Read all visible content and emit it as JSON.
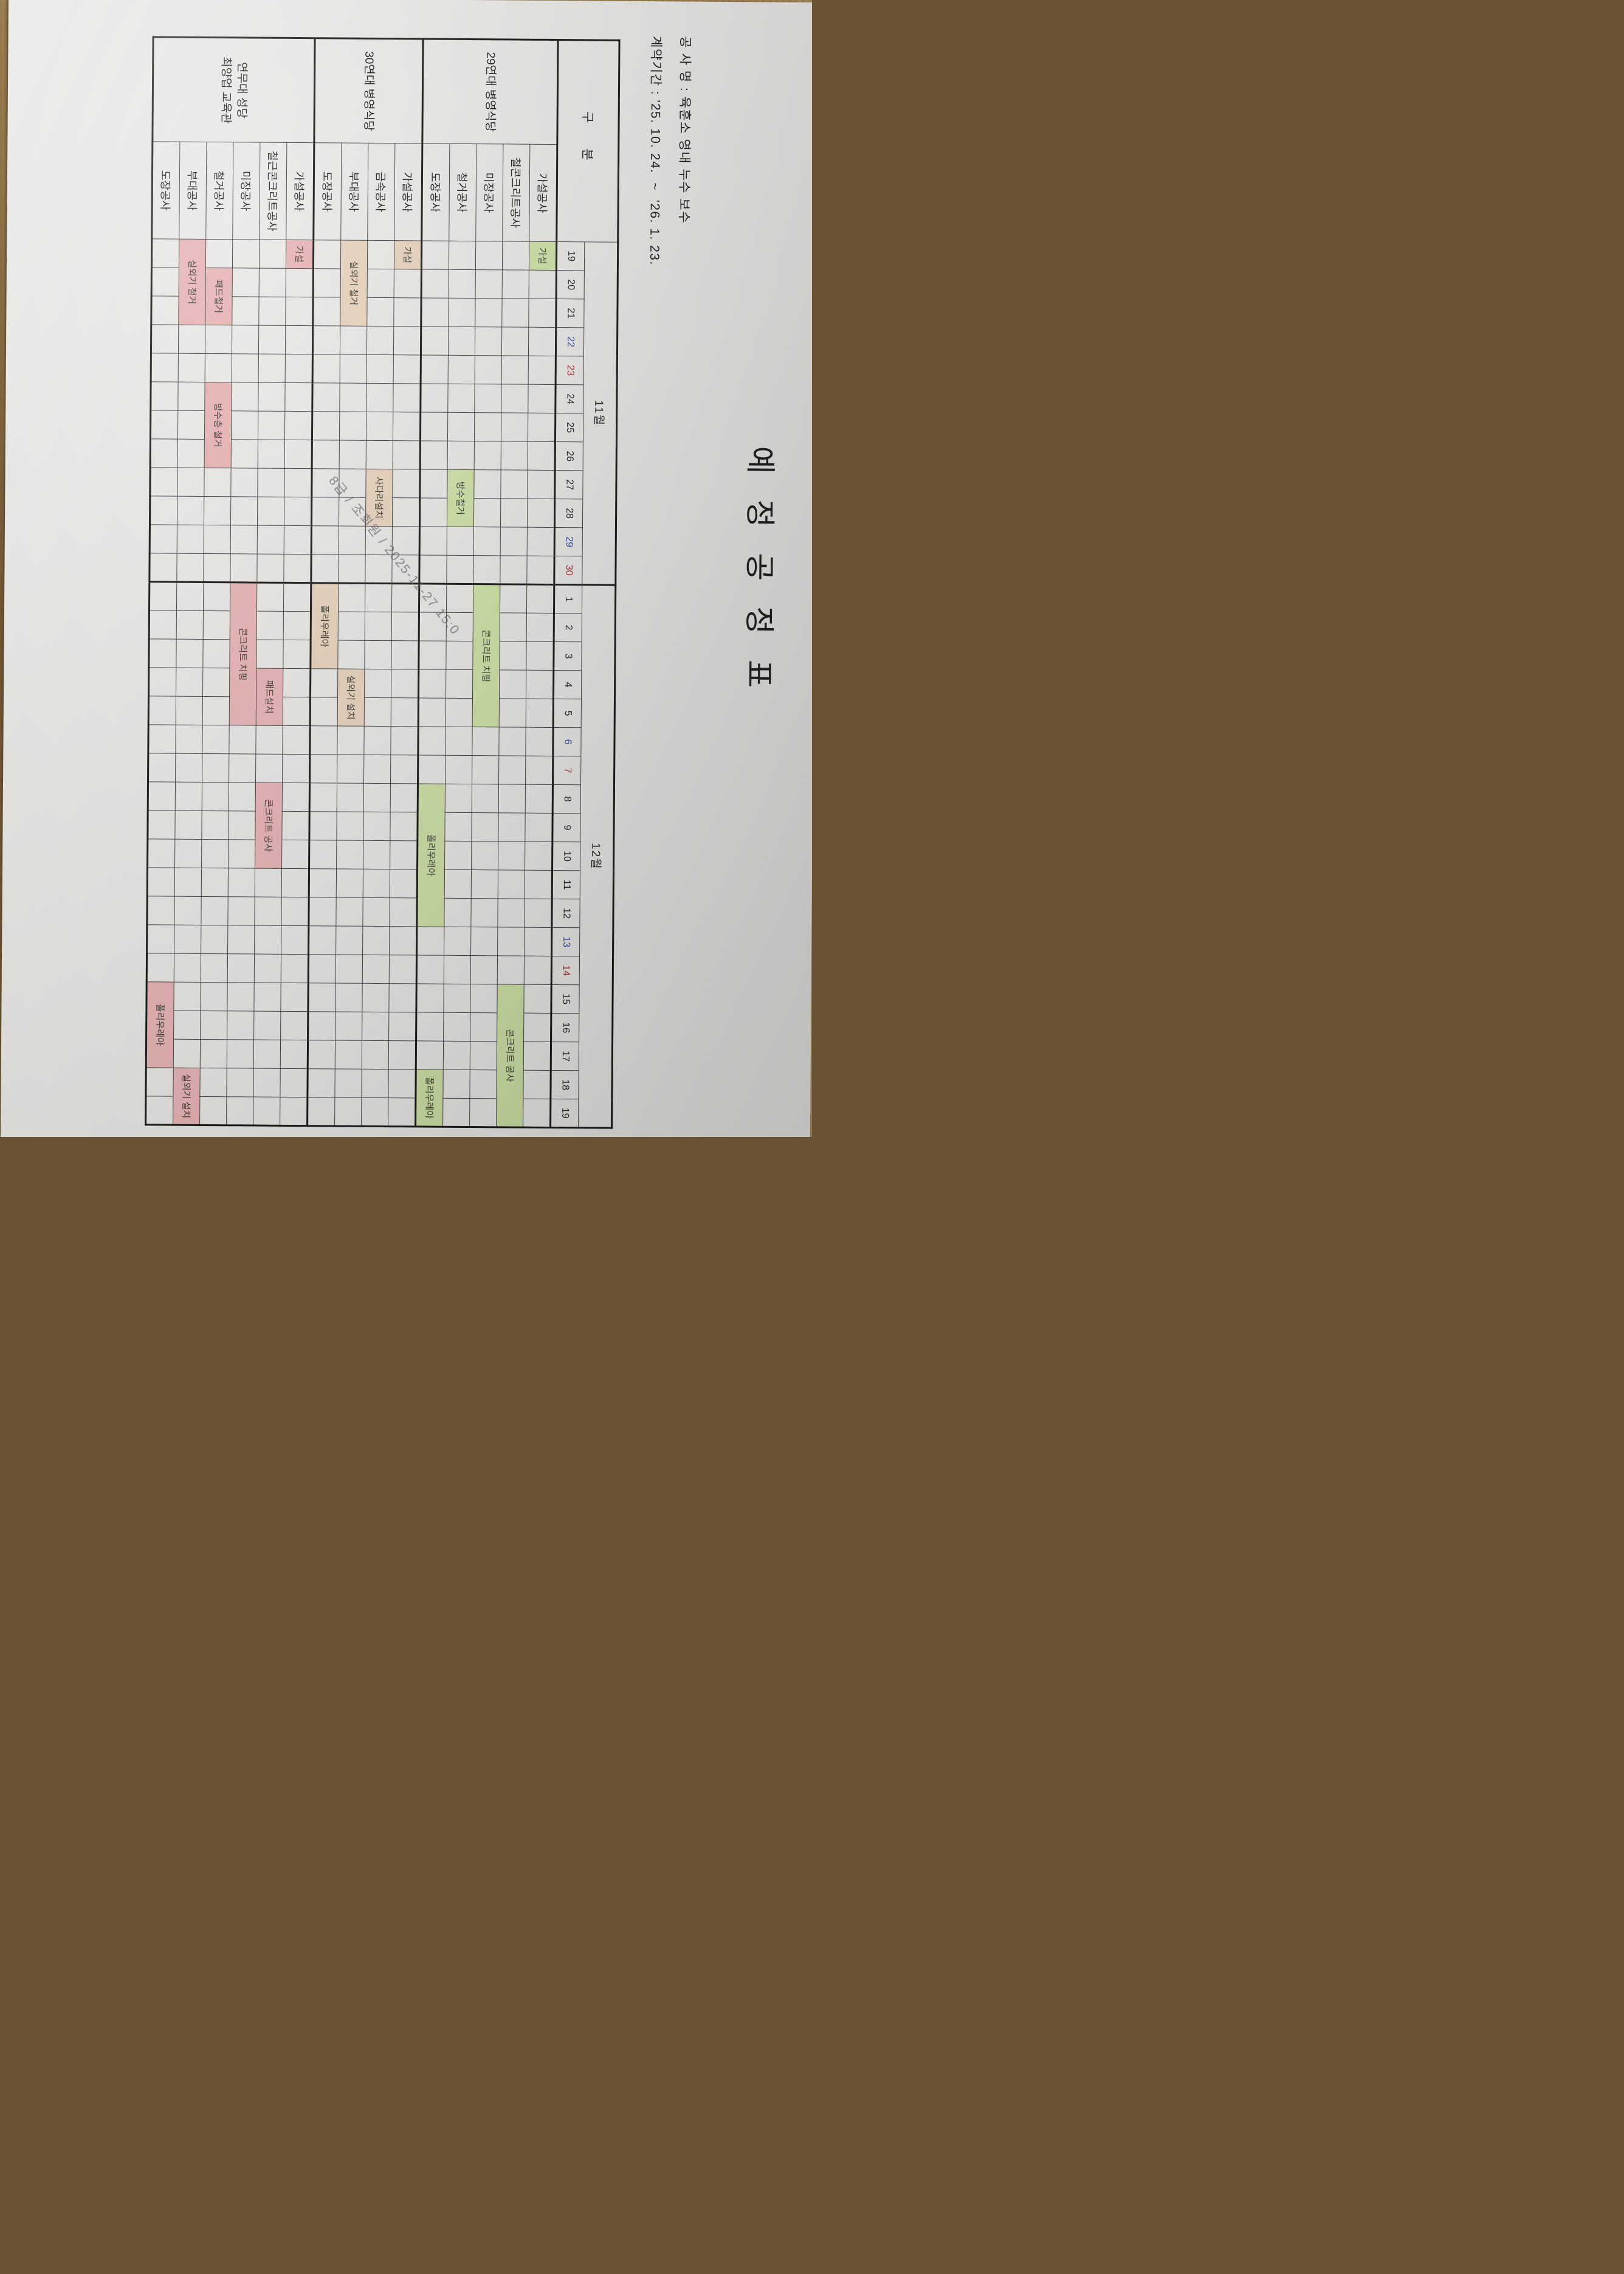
{
  "photo": {
    "watermark_text": "8급 / 조회원 / 2025-11-27 15:0",
    "wood_color": "#8d6f47",
    "paper_color": "#eae8e5"
  },
  "document": {
    "title": "예 정 공 정 표",
    "project_line": "공 사 명 : 육훈소 영내 누수 보수",
    "contract_line": "계약기간 : '25. 10. 24.  ~  '26. 1. 23.",
    "table": {
      "corner_label": "구 분",
      "day_colors": {
        "n": "#222222",
        "blue": "#2f4f9e",
        "red": "#a83232"
      },
      "months": [
        {
          "label": "11월",
          "count": 12
        },
        {
          "label": "12월",
          "count": 19
        }
      ],
      "days": [
        {
          "label": "19",
          "c": "n"
        },
        {
          "label": "20",
          "c": "n"
        },
        {
          "label": "21",
          "c": "n"
        },
        {
          "label": "22",
          "c": "blue"
        },
        {
          "label": "23",
          "c": "red"
        },
        {
          "label": "24",
          "c": "n"
        },
        {
          "label": "25",
          "c": "n"
        },
        {
          "label": "26",
          "c": "n"
        },
        {
          "label": "27",
          "c": "n"
        },
        {
          "label": "28",
          "c": "n"
        },
        {
          "label": "29",
          "c": "blue"
        },
        {
          "label": "30",
          "c": "red"
        },
        {
          "label": "1",
          "c": "n"
        },
        {
          "label": "2",
          "c": "n"
        },
        {
          "label": "3",
          "c": "n"
        },
        {
          "label": "4",
          "c": "n"
        },
        {
          "label": "5",
          "c": "n"
        },
        {
          "label": "6",
          "c": "blue"
        },
        {
          "label": "7",
          "c": "red"
        },
        {
          "label": "8",
          "c": "n"
        },
        {
          "label": "9",
          "c": "n"
        },
        {
          "label": "10",
          "c": "n"
        },
        {
          "label": "11",
          "c": "n"
        },
        {
          "label": "12",
          "c": "n"
        },
        {
          "label": "13",
          "c": "blue"
        },
        {
          "label": "14",
          "c": "red"
        },
        {
          "label": "15",
          "c": "n"
        },
        {
          "label": "16",
          "c": "n"
        },
        {
          "label": "17",
          "c": "n"
        },
        {
          "label": "18",
          "c": "n"
        },
        {
          "label": "19",
          "c": "n"
        }
      ],
      "groups": [
        {
          "name_lines": [
            "29연대 병영식당"
          ],
          "bar_color": "#cde1a5",
          "rows": [
            {
              "label": "가설공사",
              "bars": [
                {
                  "col": 0,
                  "span": 1,
                  "text": "가설"
                }
              ]
            },
            {
              "label": "철콘크리트공사",
              "bars": [
                {
                  "col": 26,
                  "span": 5,
                  "text": "콘크리트 공사"
                }
              ]
            },
            {
              "label": "미장공사",
              "bars": [
                {
                  "col": 12,
                  "span": 5,
                  "text": "콘크리트 치핑"
                }
              ]
            },
            {
              "label": "철거공사",
              "bars": [
                {
                  "col": 8,
                  "span": 2,
                  "text": "방수철거"
                }
              ]
            },
            {
              "label": "도장공사",
              "bars": [
                {
                  "col": 19,
                  "span": 5,
                  "text": "폴리우레아"
                },
                {
                  "col": 29,
                  "span": 2,
                  "text": "폴리우레아"
                }
              ]
            }
          ]
        },
        {
          "name_lines": [
            "30연대 병영식당"
          ],
          "bar_color": "#e7d2bd",
          "rows": [
            {
              "label": "가설공사",
              "bars": [
                {
                  "col": 0,
                  "span": 1,
                  "text": "가설"
                }
              ]
            },
            {
              "label": "금속공사",
              "bars": [
                {
                  "col": 8,
                  "span": 2,
                  "text": "사다리설치"
                }
              ]
            },
            {
              "label": "부대공사",
              "bars": [
                {
                  "col": 0,
                  "span": 3,
                  "text": "실외기 철거"
                },
                {
                  "col": 15,
                  "span": 2,
                  "text": "실외기 설치"
                }
              ]
            },
            {
              "label": "도장공사",
              "bars": [
                {
                  "col": 12,
                  "span": 3,
                  "text": "폴리우레아"
                }
              ]
            }
          ]
        },
        {
          "name_lines": [
            "연무대 성당",
            "최양업 교육관"
          ],
          "bar_color": "#e8b3b4",
          "rows": [
            {
              "label": "가설공사",
              "bars": [
                {
                  "col": 0,
                  "span": 1,
                  "text": "가설"
                }
              ]
            },
            {
              "label": "철근콘크리트공사",
              "bars": [
                {
                  "col": 15,
                  "span": 2,
                  "text": "패드설치"
                },
                {
                  "col": 19,
                  "span": 3,
                  "text": "콘크리트 공사"
                }
              ]
            },
            {
              "label": "미장공사",
              "bars": [
                {
                  "col": 12,
                  "span": 5,
                  "text": "콘크리트 치핑"
                }
              ]
            },
            {
              "label": "철거공사",
              "bars": [
                {
                  "col": 1,
                  "span": 2,
                  "text": "패드철거"
                },
                {
                  "col": 5,
                  "span": 3,
                  "text": "방수층 철거"
                }
              ]
            },
            {
              "label": "부대공사",
              "bars": [
                {
                  "col": 0,
                  "span": 3,
                  "text": "실외기 철거"
                },
                {
                  "col": 29,
                  "span": 2,
                  "text": "실외기 설치"
                }
              ]
            },
            {
              "label": "도장공사",
              "bars": [
                {
                  "col": 26,
                  "span": 3,
                  "text": "폴리우레아"
                }
              ]
            }
          ]
        }
      ],
      "layout": {
        "group_col_width": 172,
        "worktype_col_width": 160,
        "day_col_width": 47
      }
    }
  }
}
